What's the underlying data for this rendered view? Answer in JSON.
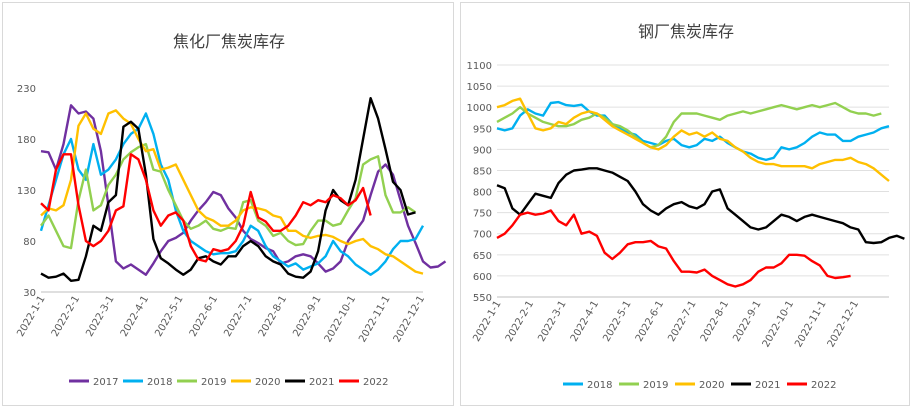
{
  "charts": [
    {
      "type": "line",
      "title": "焦化厂焦炭库存",
      "ylim": [
        30,
        230
      ],
      "yticks": [
        30,
        80,
        130,
        180,
        230
      ],
      "xticks": [
        "2022-1-1",
        "2022-2-1",
        "2022-3-1",
        "2022-4-1",
        "2022-5-1",
        "2022-6-1",
        "2022-7-1",
        "2022-8-1",
        "2022-9-1",
        "2022-10-1",
        "2022-11-1",
        "2022-12-1"
      ],
      "grid": false,
      "legend_position": "bottom",
      "series": [
        {
          "name": "2017",
          "color": "#7030a0",
          "values": [
            168,
            167,
            150,
            175,
            213,
            205,
            207,
            200,
            168,
            115,
            60,
            53,
            57,
            52,
            47,
            58,
            70,
            80,
            83,
            88,
            100,
            110,
            118,
            128,
            125,
            112,
            103,
            90,
            82,
            78,
            73,
            70,
            58,
            60,
            65,
            67,
            65,
            58,
            50,
            53,
            60,
            80,
            90,
            100,
            125,
            148,
            155,
            145,
            120,
            95,
            78,
            60,
            54,
            55,
            60
          ]
        },
        {
          "name": "2018",
          "color": "#00b0f0",
          "values": [
            90,
            115,
            140,
            165,
            180,
            150,
            140,
            175,
            145,
            150,
            160,
            175,
            185,
            190,
            205,
            185,
            155,
            140,
            110,
            90,
            80,
            75,
            70,
            67,
            68,
            68,
            70,
            80,
            95,
            90,
            75,
            65,
            60,
            55,
            58,
            52,
            55,
            58,
            65,
            80,
            70,
            65,
            57,
            52,
            47,
            52,
            60,
            72,
            80,
            80,
            82,
            95
          ]
        },
        {
          "name": "2019",
          "color": "#92d050",
          "values": [
            95,
            105,
            90,
            75,
            73,
            120,
            150,
            110,
            115,
            135,
            145,
            160,
            167,
            172,
            175,
            150,
            148,
            130,
            115,
            100,
            92,
            95,
            100,
            92,
            90,
            93,
            92,
            118,
            120,
            100,
            95,
            85,
            88,
            80,
            76,
            77,
            90,
            100,
            100,
            95,
            97,
            110,
            122,
            155,
            160,
            163,
            125,
            108,
            108,
            113,
            108
          ]
        },
        {
          "name": "2020",
          "color": "#ffc000",
          "values": [
            105,
            112,
            110,
            115,
            140,
            193,
            205,
            190,
            185,
            205,
            208,
            200,
            195,
            180,
            168,
            170,
            150,
            152,
            155,
            140,
            125,
            110,
            103,
            100,
            95,
            95,
            100,
            110,
            113,
            112,
            110,
            105,
            103,
            90,
            90,
            85,
            83,
            85,
            86,
            84,
            80,
            77,
            80,
            82,
            75,
            72,
            67,
            65,
            60,
            55,
            50,
            48
          ]
        },
        {
          "name": "2021",
          "color": "#000000",
          "values": [
            48,
            44,
            45,
            48,
            41,
            42,
            65,
            95,
            90,
            118,
            125,
            192,
            197,
            190,
            145,
            82,
            63,
            58,
            52,
            47,
            52,
            63,
            65,
            60,
            57,
            65,
            65,
            75,
            80,
            75,
            65,
            60,
            57,
            48,
            45,
            44,
            50,
            70,
            110,
            130,
            120,
            115,
            140,
            180,
            220,
            200,
            170,
            138,
            130,
            106,
            108
          ]
        },
        {
          "name": "2022",
          "color": "#ff0000",
          "values": [
            117,
            110,
            150,
            165,
            165,
            115,
            80,
            75,
            80,
            90,
            110,
            114,
            165,
            160,
            140,
            110,
            95,
            105,
            108,
            100,
            75,
            62,
            60,
            72,
            70,
            72,
            80,
            95,
            128,
            103,
            99,
            90,
            90,
            95,
            105,
            118,
            115,
            120,
            118,
            125,
            122,
            115,
            120,
            132,
            105
          ]
        }
      ]
    },
    {
      "type": "line",
      "title": "钢厂焦炭库存",
      "ylim": [
        550,
        1100
      ],
      "yticks": [
        550,
        600,
        650,
        700,
        750,
        800,
        850,
        900,
        950,
        1000,
        1050,
        1100
      ],
      "xticks": [
        "2022-1-1",
        "2022-2-1",
        "2022-3-1",
        "2022-4-1",
        "2022-5-1",
        "2022-6-1",
        "2022-7-1",
        "2022-8-1",
        "2022-9-1",
        "2022-10-1",
        "2022-11-1",
        "2022-12-1"
      ],
      "grid": true,
      "legend_position": "bottom",
      "series": [
        {
          "name": "2018",
          "color": "#00b0f0",
          "values": [
            950,
            945,
            950,
            980,
            995,
            985,
            980,
            1010,
            1012,
            1005,
            1003,
            1006,
            990,
            980,
            980,
            960,
            950,
            940,
            935,
            920,
            915,
            910,
            920,
            925,
            910,
            905,
            910,
            925,
            920,
            930,
            915,
            905,
            895,
            890,
            880,
            875,
            880,
            905,
            900,
            905,
            915,
            930,
            940,
            935,
            935,
            920,
            920,
            930,
            935,
            940,
            950,
            955
          ]
        },
        {
          "name": "2019",
          "color": "#92d050",
          "values": [
            965,
            975,
            985,
            1000,
            985,
            975,
            965,
            960,
            955,
            955,
            960,
            970,
            975,
            985,
            975,
            960,
            955,
            945,
            930,
            915,
            905,
            910,
            930,
            965,
            985,
            985,
            985,
            980,
            975,
            970,
            980,
            985,
            990,
            985,
            990,
            995,
            1000,
            1005,
            1000,
            995,
            1000,
            1005,
            1000,
            1005,
            1010,
            1000,
            990,
            985,
            985,
            980,
            985
          ]
        },
        {
          "name": "2020",
          "color": "#ffc000",
          "values": [
            1000,
            1005,
            1015,
            1020,
            985,
            950,
            945,
            950,
            965,
            960,
            975,
            985,
            990,
            985,
            970,
            955,
            945,
            935,
            925,
            915,
            905,
            900,
            910,
            930,
            945,
            935,
            940,
            930,
            940,
            925,
            920,
            905,
            895,
            880,
            870,
            865,
            865,
            860,
            860,
            860,
            860,
            855,
            865,
            870,
            875,
            875,
            880,
            870,
            865,
            855,
            840,
            825
          ]
        },
        {
          "name": "2021",
          "color": "#000000",
          "values": [
            815,
            808,
            760,
            745,
            770,
            795,
            790,
            785,
            820,
            840,
            850,
            852,
            855,
            855,
            850,
            845,
            835,
            825,
            800,
            770,
            755,
            745,
            760,
            770,
            775,
            765,
            760,
            770,
            800,
            805,
            760,
            745,
            730,
            715,
            710,
            715,
            730,
            745,
            740,
            730,
            740,
            745,
            740,
            735,
            730,
            725,
            715,
            710,
            680,
            678,
            680,
            690,
            695,
            688
          ]
        },
        {
          "name": "2022",
          "color": "#ff0000",
          "values": [
            690,
            700,
            720,
            745,
            750,
            745,
            748,
            755,
            730,
            720,
            745,
            700,
            705,
            695,
            655,
            640,
            655,
            675,
            680,
            680,
            683,
            670,
            665,
            635,
            610,
            610,
            608,
            615,
            600,
            590,
            580,
            575,
            580,
            590,
            610,
            620,
            620,
            630,
            650,
            650,
            648,
            635,
            625,
            600,
            595,
            597,
            600
          ]
        }
      ]
    }
  ]
}
